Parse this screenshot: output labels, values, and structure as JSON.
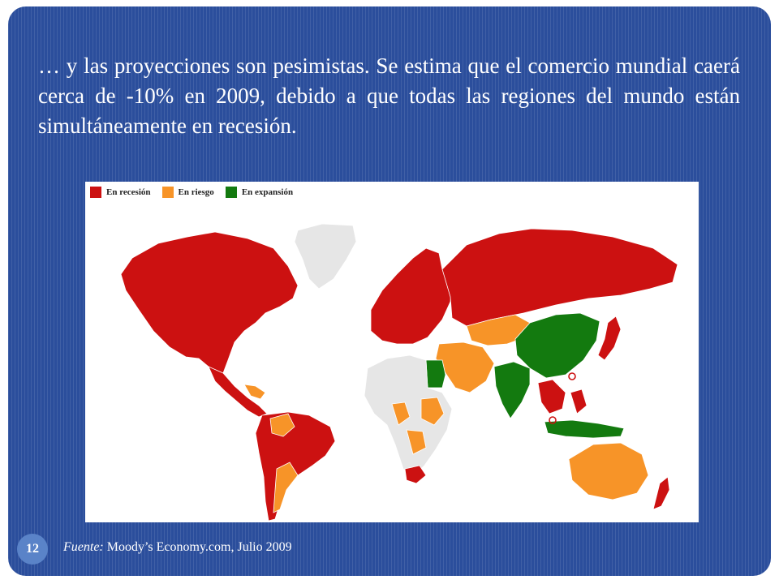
{
  "slide": {
    "text": "… y las proyecciones son pesimistas. Se estima que el comercio mundial caerá cerca de -10% en 2009, debido a que todas las regiones del mundo están simultáneamente en recesión.",
    "page_number": "12",
    "source_label": "Fuente:",
    "source_text": "Moody’s Economy.com, Julio 2009"
  },
  "map": {
    "legend": [
      {
        "label": "En recesión",
        "color": "#cc1111"
      },
      {
        "label": "En riesgo",
        "color": "#f79428"
      },
      {
        "label": "En expansión",
        "color": "#137a0f"
      }
    ],
    "no_data_color": "#e6e6e6",
    "regions": [
      {
        "name": "North America",
        "status": "recession"
      },
      {
        "name": "Greenland",
        "status": "no-data"
      },
      {
        "name": "Mexico and Central America",
        "status": "recession"
      },
      {
        "name": "South America",
        "status": "mixed"
      },
      {
        "name": "Europe",
        "status": "recession"
      },
      {
        "name": "Russia",
        "status": "recession"
      },
      {
        "name": "Central Asia",
        "status": "risk"
      },
      {
        "name": "China",
        "status": "expansion"
      },
      {
        "name": "India",
        "status": "expansion"
      },
      {
        "name": "Japan",
        "status": "recession"
      },
      {
        "name": "Southeast Asia",
        "status": "mixed"
      },
      {
        "name": "Australia",
        "status": "risk"
      },
      {
        "name": "New Zealand",
        "status": "recession"
      },
      {
        "name": "Africa",
        "status": "mixed"
      },
      {
        "name": "South Africa",
        "status": "recession"
      }
    ]
  }
}
